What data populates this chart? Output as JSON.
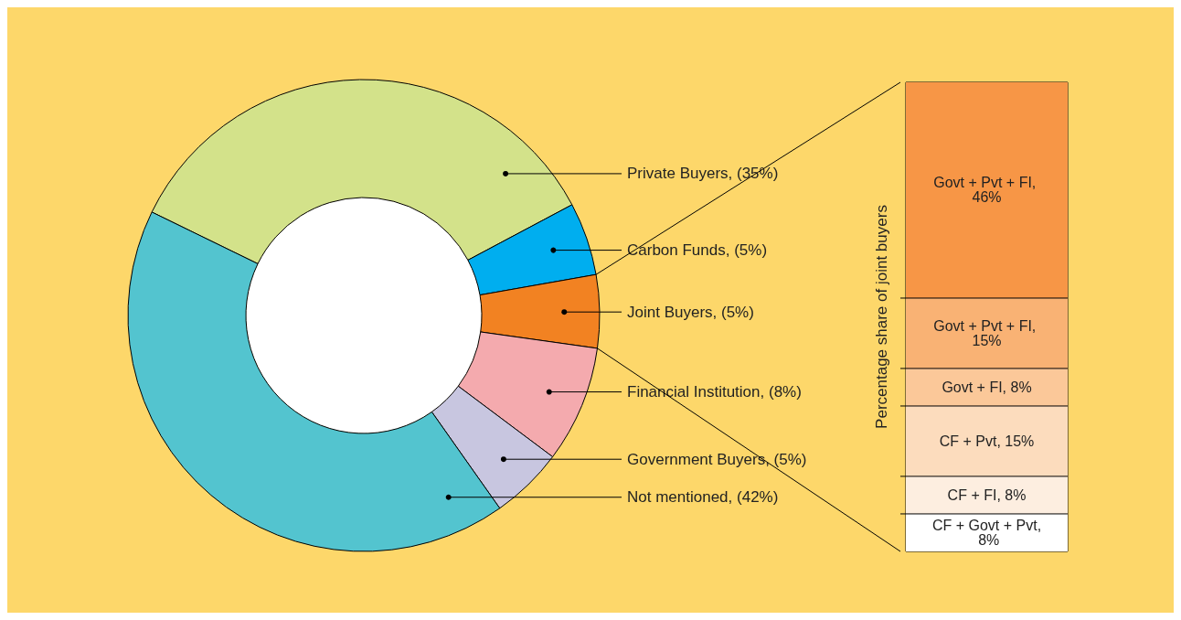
{
  "chart_data": [
    {
      "type": "donut",
      "categories": [
        "Private Buyers, (35%)",
        "Carbon Funds, (5%)",
        "Joint Buyers, (5%)",
        "Financial Institution, (8%)",
        "Government Buyers, (5%)",
        "Not mentioned, (42%)"
      ],
      "values": [
        35,
        5,
        5,
        8,
        5,
        42
      ],
      "colors": [
        "#d3e28a",
        "#00aeef",
        "#f28222",
        "#f4aaae",
        "#c8c6e0",
        "#53c4cf"
      ]
    },
    {
      "type": "bar",
      "stacked": true,
      "categories": [
        null
      ],
      "ylabel": "Percentage share of joint buyers",
      "tick_labels": false,
      "series": [
        {
          "color": "#ffffff",
          "values": [
            8
          ],
          "value_labels": [
            "CF + Govt + Pvt, 8%"
          ]
        },
        {
          "color": "#fdeee0",
          "values": [
            8
          ],
          "value_labels": [
            "CF + FI, 8%"
          ]
        },
        {
          "color": "#fcdcbd",
          "values": [
            15
          ],
          "value_labels": [
            "CF + Pvt, 15%"
          ]
        },
        {
          "color": "#fbc899",
          "values": [
            8
          ],
          "value_labels": [
            "Govt + FI, 8%"
          ]
        },
        {
          "color": "#f9b274",
          "values": [
            15
          ],
          "value_labels": [
            "Govt + Pvt + FI, 15%"
          ]
        },
        {
          "color": "#f79646",
          "values": [
            46
          ],
          "value_labels": [
            "Govt + Pvt + FI, 46%"
          ]
        }
      ]
    }
  ]
}
